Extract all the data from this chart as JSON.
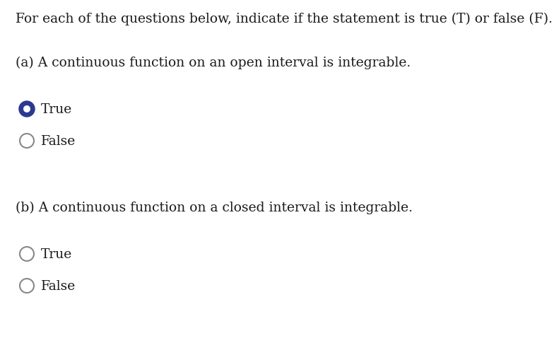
{
  "background_color": "#ffffff",
  "header_text": "For each of the questions below, indicate if the statement is true (T) or false (F).",
  "header_fontsize": 13.5,
  "questions": [
    {
      "label": "(a) A continuous function on an open interval is integrable.",
      "fontsize": 13.5,
      "options": [
        {
          "text": "True",
          "selected": true
        },
        {
          "text": "False",
          "selected": false
        }
      ]
    },
    {
      "label": "(b) A continuous function on a closed interval is integrable.",
      "fontsize": 13.5,
      "options": [
        {
          "text": "True",
          "selected": false
        },
        {
          "text": "False",
          "selected": false
        }
      ]
    }
  ],
  "radio_selected_color": "#2B3990",
  "radio_unselected_edgecolor": "#888888",
  "radio_linewidth_selected": 2.5,
  "radio_linewidth_unselected": 1.5,
  "text_color": "#1a1a1a",
  "option_fontsize": 13.5
}
